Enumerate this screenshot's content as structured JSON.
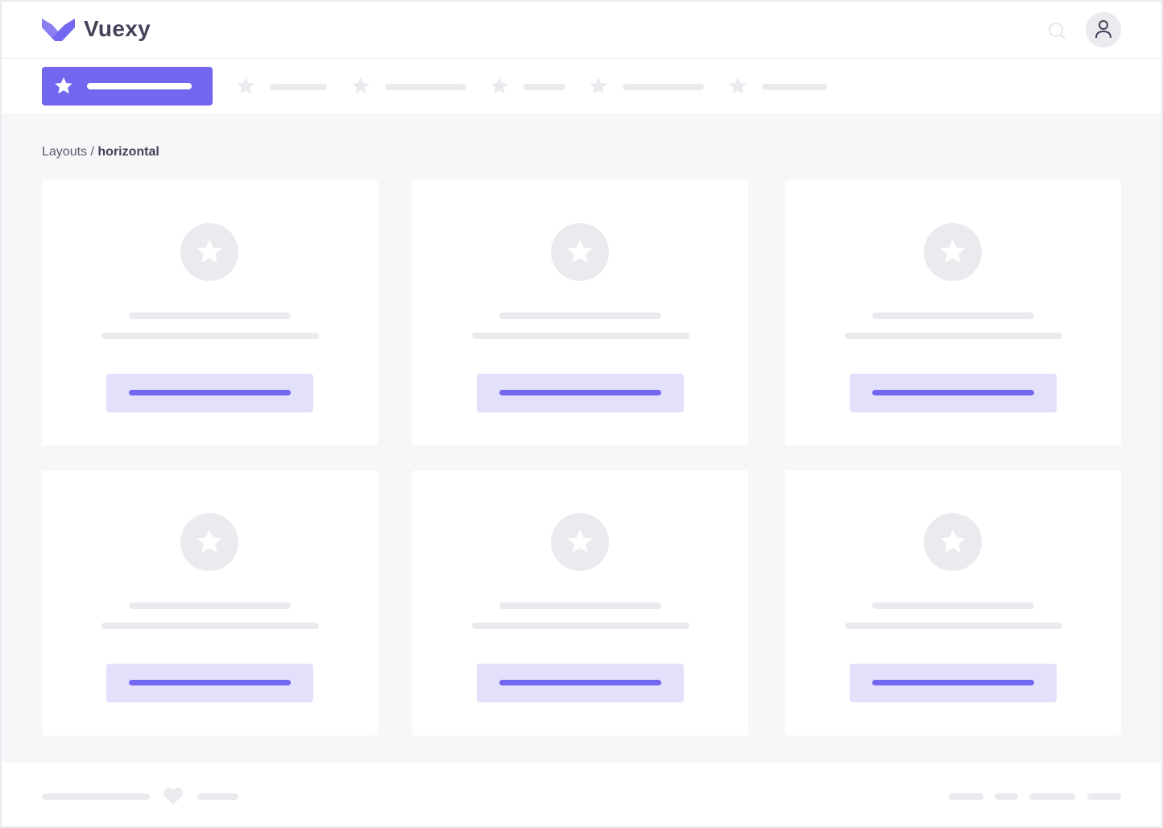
{
  "header": {
    "brand": "Vuexy",
    "search_icon": "search-icon",
    "avatar_icon": "user-icon"
  },
  "nav": {
    "active_icon": "star-icon",
    "items": [
      {
        "icon": "star-icon"
      },
      {
        "icon": "star-icon"
      },
      {
        "icon": "star-icon"
      },
      {
        "icon": "star-icon"
      },
      {
        "icon": "star-icon"
      }
    ]
  },
  "breadcrumb": {
    "parent": "Layouts",
    "separator": "/",
    "current": "horizontal"
  },
  "cards": [
    {
      "icon": "star-icon"
    },
    {
      "icon": "star-icon"
    },
    {
      "icon": "star-icon"
    },
    {
      "icon": "star-icon"
    },
    {
      "icon": "star-icon"
    },
    {
      "icon": "star-icon"
    }
  ],
  "footer": {
    "icon": "heart-icon"
  },
  "colors": {
    "primary": "#7367f0",
    "primary_light": "#e3e0fb",
    "placeholder": "#ebebef",
    "background": "#f7f7f9",
    "text": "#444259"
  }
}
